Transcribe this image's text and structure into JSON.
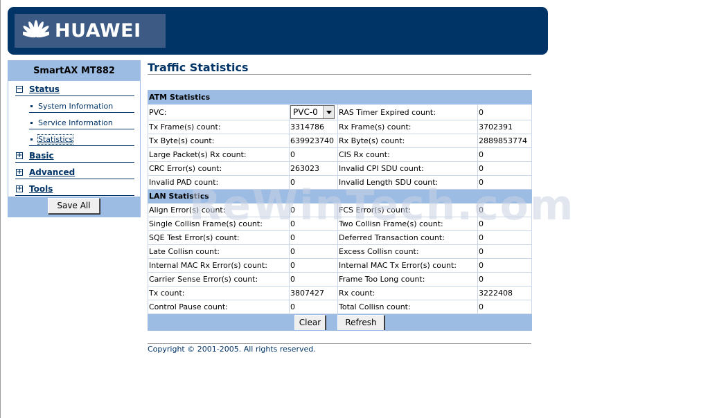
{
  "header": {
    "brand": "HUAWEI"
  },
  "sidebar": {
    "title": "SmartAX MT882",
    "groups": [
      {
        "label": "Status",
        "toggle": "−"
      },
      {
        "label": "Basic",
        "toggle": "+"
      },
      {
        "label": "Advanced",
        "toggle": "+"
      },
      {
        "label": "Tools",
        "toggle": "+"
      }
    ],
    "status_items": [
      "System Information",
      "Service Information",
      "Statistics"
    ],
    "save_label": "Save All"
  },
  "page": {
    "title": "Traffic Statistics"
  },
  "atm": {
    "section_title": "ATM Statistics",
    "pvc_label": "PVC:",
    "pvc_value": "PVC-0",
    "rows": [
      [
        "",
        "",
        "RAS Timer Expired count:",
        "0"
      ],
      [
        "Tx Frame(s) count:",
        "3314786",
        "Rx Frame(s) count:",
        "3702391"
      ],
      [
        "Tx Byte(s) count:",
        "639923740",
        "Rx Byte(s) count:",
        "2889853774"
      ],
      [
        "Large Packet(s) Rx count:",
        "0",
        "CIS Rx count:",
        "0"
      ],
      [
        "CRC Error(s) count:",
        "263023",
        "Invalid CPI SDU count:",
        "0"
      ],
      [
        "Invalid PAD count:",
        "0",
        "Invalid Length SDU count:",
        "0"
      ]
    ]
  },
  "lan": {
    "section_title": "LAN Statistics",
    "rows": [
      [
        "Align Error(s) count:",
        "0",
        "FCS Error(s) count:",
        "0"
      ],
      [
        "Single Collisn Frame(s) count:",
        "0",
        "Two Collisn Frame(s) count:",
        "0"
      ],
      [
        "SQE Test Error(s) count:",
        "0",
        "Deferred Transaction count:",
        "0"
      ],
      [
        "Late Collisn count:",
        "0",
        "Excess Collisn count:",
        "0"
      ],
      [
        "Internal MAC Rx Error(s) count:",
        "0",
        "Internal MAC Tx Error(s) count:",
        "0"
      ],
      [
        "Carrier Sense Error(s) count:",
        "0",
        "Frame Too Long count:",
        "0"
      ],
      [
        "Tx count:",
        "3807427",
        "Rx count:",
        "3222408"
      ],
      [
        "Control Pause count:",
        "0",
        "Total Collisn count:",
        "0"
      ]
    ]
  },
  "actions": {
    "clear_label": "Clear",
    "refresh_label": "Refresh"
  },
  "footer": {
    "copyright": "Copyright © 2001-2005. All rights reserved."
  },
  "watermark": "ReWinTech.com",
  "colors": {
    "navy": "#003366",
    "light_blue": "#9dbce4"
  }
}
